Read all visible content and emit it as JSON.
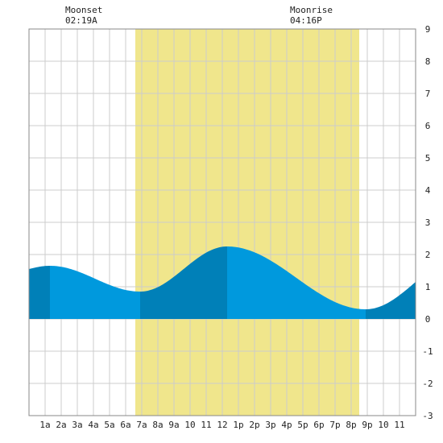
{
  "chart_data": {
    "type": "area",
    "title": "",
    "xlabel": "",
    "ylabel": "",
    "x_range": [
      0,
      24
    ],
    "ylim": [
      -3,
      9
    ],
    "y_ticks": [
      -3,
      -2,
      -1,
      0,
      1,
      2,
      3,
      4,
      5,
      6,
      7,
      8,
      9
    ],
    "y_tick_labels": [
      "-3",
      "-2",
      "-1",
      "0",
      "1",
      "2",
      "3",
      "4",
      "5",
      "6",
      "7",
      "8",
      "9"
    ],
    "x_ticks": [
      1,
      2,
      3,
      4,
      5,
      6,
      7,
      8,
      9,
      10,
      11,
      12,
      13,
      14,
      15,
      16,
      17,
      18,
      19,
      20,
      21,
      22,
      23
    ],
    "x_tick_labels": [
      "1a",
      "2a",
      "3a",
      "4a",
      "5a",
      "6a",
      "7a",
      "8a",
      "9a",
      "10",
      "11",
      "12",
      "1p",
      "2p",
      "3p",
      "4p",
      "5p",
      "6p",
      "7p",
      "8p",
      "9p",
      "10",
      "11"
    ],
    "daylight": {
      "start_hour": 6.6,
      "end_hour": 20.5
    },
    "extremes": [
      {
        "hour": 1.3,
        "height": 1.65,
        "kind": "high"
      },
      {
        "hour": 6.9,
        "height": 0.85,
        "kind": "low"
      },
      {
        "hour": 12.3,
        "height": 2.25,
        "kind": "high"
      },
      {
        "hour": 20.9,
        "height": 0.3,
        "kind": "low"
      }
    ],
    "y_at_start": 1.55,
    "y_at_end": 1.15,
    "grid": true,
    "colors": {
      "daylight": "#f0e68c",
      "tide_light": "#0099dd",
      "tide_dark": "#0080b8",
      "grid": "#cccccc",
      "frame": "#888888"
    }
  },
  "moon_events": [
    {
      "label": "Moonset",
      "time": "02:19A",
      "hour": 2.32
    },
    {
      "label": "Moonrise",
      "time": "04:16P",
      "hour": 16.27
    }
  ]
}
